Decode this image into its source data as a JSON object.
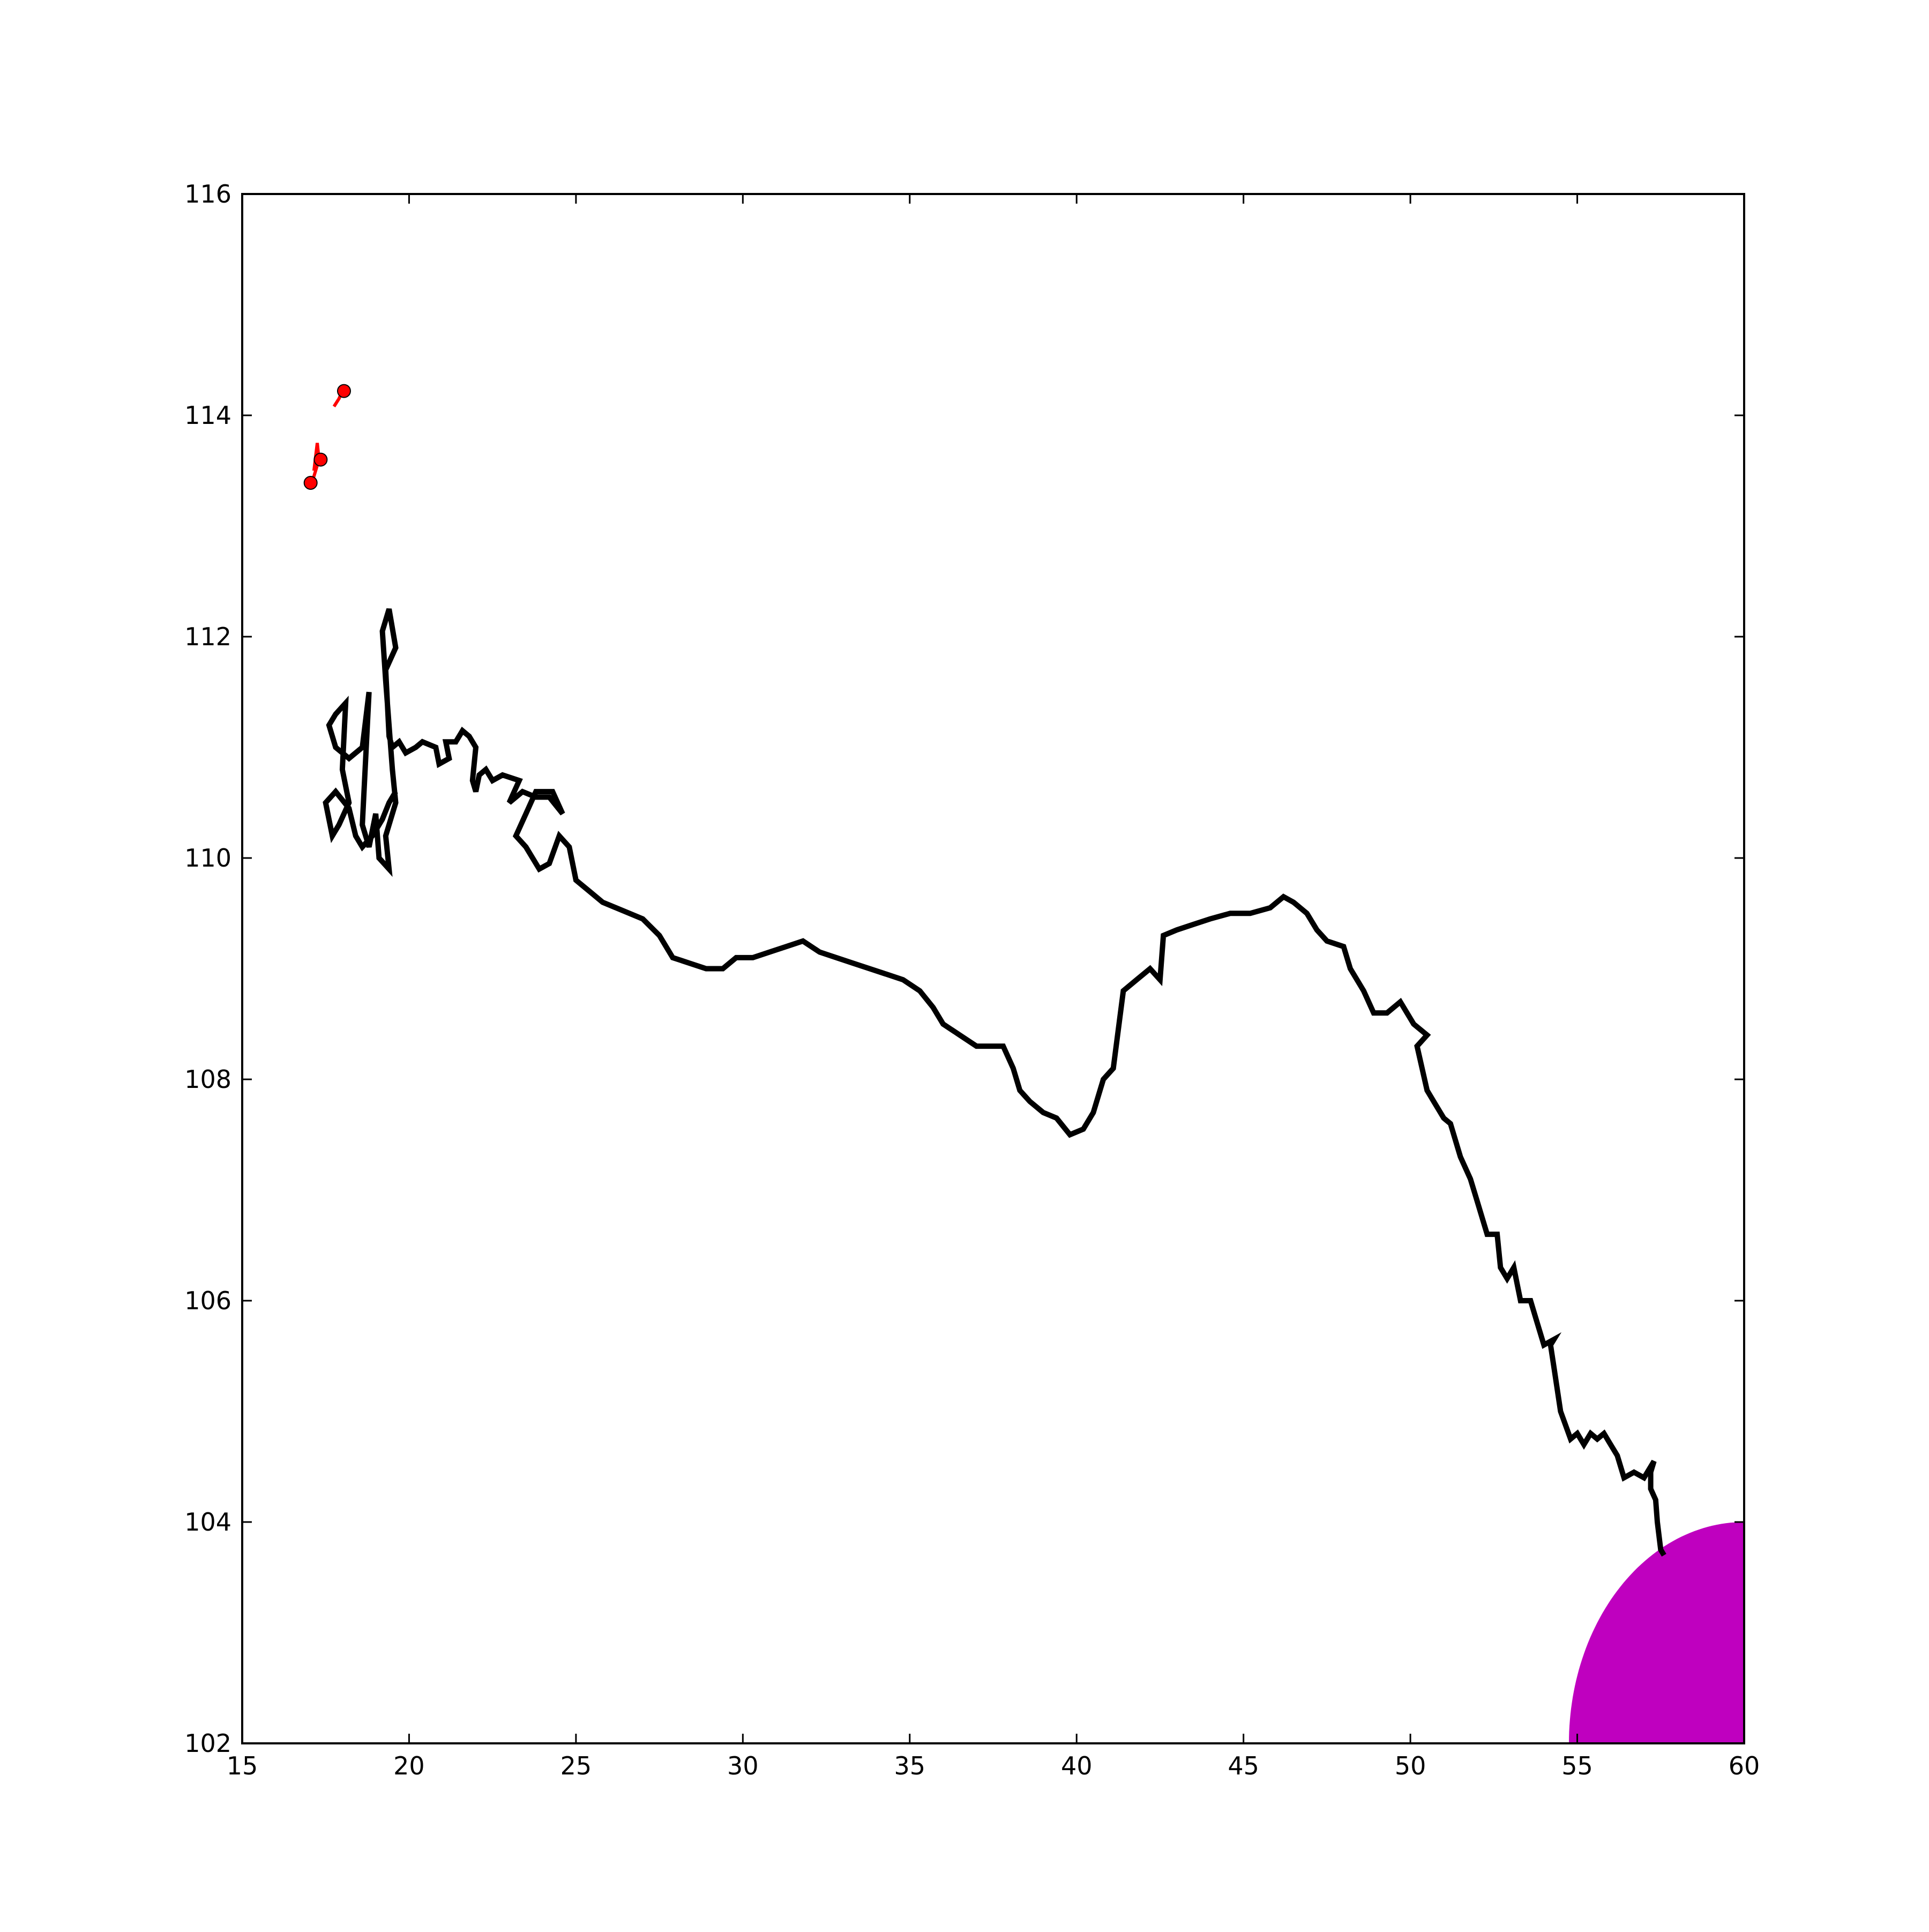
{
  "chart_data": {
    "type": "line",
    "title": "",
    "xlabel": "",
    "ylabel": "",
    "xlim": [
      15,
      60
    ],
    "ylim": [
      102,
      116
    ],
    "grid": false,
    "legend": "none",
    "x_ticks": [
      15,
      20,
      25,
      30,
      35,
      40,
      45,
      50,
      55,
      60
    ],
    "y_ticks": [
      102,
      104,
      106,
      108,
      110,
      112,
      114,
      116
    ],
    "x_tick_labels": [
      "15",
      "20",
      "25",
      "30",
      "35",
      "40",
      "45",
      "50",
      "55",
      "60"
    ],
    "y_tick_labels": [
      "102",
      "104",
      "106",
      "108",
      "110",
      "112",
      "114",
      "116"
    ],
    "series": [
      {
        "color": "#000000",
        "points": [
          [
            57.6,
            103.7
          ],
          [
            57.5,
            103.75
          ],
          [
            57.4,
            104.0
          ],
          [
            57.35,
            104.2
          ],
          [
            57.2,
            104.3
          ],
          [
            57.2,
            104.45
          ],
          [
            57.3,
            104.55
          ],
          [
            57.0,
            104.4
          ],
          [
            56.7,
            104.45
          ],
          [
            56.4,
            104.4
          ],
          [
            56.2,
            104.6
          ],
          [
            56.0,
            104.7
          ],
          [
            55.8,
            104.8
          ],
          [
            55.6,
            104.75
          ],
          [
            55.4,
            104.8
          ],
          [
            55.2,
            104.7
          ],
          [
            55.0,
            104.8
          ],
          [
            54.8,
            104.75
          ],
          [
            54.5,
            105.0
          ],
          [
            54.3,
            105.4
          ],
          [
            54.2,
            105.6
          ],
          [
            54.3,
            105.65
          ],
          [
            54.0,
            105.6
          ],
          [
            53.8,
            105.8
          ],
          [
            53.6,
            106.0
          ],
          [
            53.3,
            106.0
          ],
          [
            53.1,
            106.3
          ],
          [
            52.9,
            106.2
          ],
          [
            52.7,
            106.3
          ],
          [
            52.6,
            106.6
          ],
          [
            52.3,
            106.6
          ],
          [
            52.0,
            106.9
          ],
          [
            51.8,
            107.1
          ],
          [
            51.5,
            107.3
          ],
          [
            51.2,
            107.6
          ],
          [
            51.0,
            107.65
          ],
          [
            50.7,
            107.8
          ],
          [
            50.5,
            107.9
          ],
          [
            50.2,
            108.3
          ],
          [
            50.5,
            108.4
          ],
          [
            50.1,
            108.5
          ],
          [
            49.7,
            108.7
          ],
          [
            49.3,
            108.6
          ],
          [
            48.9,
            108.6
          ],
          [
            48.6,
            108.8
          ],
          [
            48.2,
            109.0
          ],
          [
            48.0,
            109.2
          ],
          [
            47.5,
            109.25
          ],
          [
            47.2,
            109.35
          ],
          [
            46.9,
            109.5
          ],
          [
            46.5,
            109.6
          ],
          [
            46.2,
            109.65
          ],
          [
            45.8,
            109.55
          ],
          [
            45.2,
            109.5
          ],
          [
            44.6,
            109.5
          ],
          [
            44.0,
            109.45
          ],
          [
            43.5,
            109.4
          ],
          [
            43.0,
            109.35
          ],
          [
            42.6,
            109.3
          ],
          [
            42.5,
            108.9
          ],
          [
            42.2,
            109.0
          ],
          [
            41.8,
            108.9
          ],
          [
            41.4,
            108.8
          ],
          [
            41.1,
            108.1
          ],
          [
            40.8,
            108.0
          ],
          [
            40.5,
            107.7
          ],
          [
            40.2,
            107.55
          ],
          [
            39.8,
            107.5
          ],
          [
            39.4,
            107.65
          ],
          [
            39.0,
            107.7
          ],
          [
            38.6,
            107.8
          ],
          [
            38.3,
            107.9
          ],
          [
            38.1,
            108.1
          ],
          [
            37.8,
            108.3
          ],
          [
            37.5,
            108.3
          ],
          [
            37.0,
            108.3
          ],
          [
            36.5,
            108.4
          ],
          [
            36.0,
            108.5
          ],
          [
            35.7,
            108.65
          ],
          [
            35.3,
            108.8
          ],
          [
            34.8,
            108.9
          ],
          [
            34.3,
            108.95
          ],
          [
            33.8,
            109.0
          ],
          [
            33.3,
            109.05
          ],
          [
            32.8,
            109.1
          ],
          [
            32.3,
            109.15
          ],
          [
            31.8,
            109.25
          ],
          [
            31.3,
            109.2
          ],
          [
            30.8,
            109.15
          ],
          [
            30.3,
            109.1
          ],
          [
            29.8,
            109.1
          ],
          [
            29.4,
            109.0
          ],
          [
            28.9,
            109.0
          ],
          [
            28.4,
            109.05
          ],
          [
            27.9,
            109.1
          ],
          [
            27.5,
            109.3
          ],
          [
            27.0,
            109.45
          ],
          [
            26.6,
            109.5
          ],
          [
            26.2,
            109.55
          ],
          [
            25.8,
            109.6
          ],
          [
            25.4,
            109.7
          ],
          [
            25.0,
            109.8
          ],
          [
            24.8,
            110.1
          ],
          [
            24.5,
            110.2
          ],
          [
            24.2,
            109.95
          ],
          [
            23.9,
            109.9
          ],
          [
            23.5,
            110.1
          ],
          [
            23.2,
            110.2
          ],
          [
            23.5,
            110.4
          ],
          [
            23.8,
            110.6
          ],
          [
            24.3,
            110.6
          ],
          [
            24.6,
            110.4
          ],
          [
            24.2,
            110.55
          ],
          [
            23.8,
            110.55
          ],
          [
            23.4,
            110.6
          ],
          [
            23.0,
            110.5
          ],
          [
            23.3,
            110.7
          ],
          [
            22.8,
            110.75
          ],
          [
            22.5,
            110.7
          ],
          [
            22.3,
            110.8
          ],
          [
            22.1,
            110.75
          ],
          [
            22.0,
            110.6
          ],
          [
            21.9,
            110.7
          ],
          [
            22.0,
            111.0
          ],
          [
            21.8,
            111.1
          ],
          [
            21.6,
            111.15
          ],
          [
            21.4,
            111.05
          ],
          [
            21.1,
            111.05
          ],
          [
            21.2,
            110.9
          ],
          [
            20.9,
            110.85
          ],
          [
            20.8,
            111.0
          ],
          [
            20.4,
            111.05
          ],
          [
            20.2,
            111.0
          ],
          [
            19.9,
            110.95
          ],
          [
            19.7,
            111.05
          ],
          [
            19.5,
            111.0
          ],
          [
            19.4,
            111.1
          ],
          [
            19.3,
            111.7
          ],
          [
            19.6,
            111.9
          ],
          [
            19.4,
            112.25
          ],
          [
            19.2,
            112.05
          ],
          [
            19.3,
            111.6
          ],
          [
            19.5,
            110.8
          ],
          [
            19.6,
            110.5
          ],
          [
            19.3,
            110.2
          ],
          [
            19.4,
            109.9
          ],
          [
            19.1,
            110.0
          ],
          [
            19.0,
            110.4
          ],
          [
            18.8,
            110.1
          ],
          [
            18.6,
            110.3
          ],
          [
            18.8,
            111.5
          ],
          [
            18.6,
            111.0
          ],
          [
            18.2,
            110.9
          ],
          [
            17.8,
            111.0
          ],
          [
            17.6,
            111.2
          ],
          [
            17.8,
            111.3
          ],
          [
            18.1,
            111.4
          ],
          [
            18.0,
            110.8
          ],
          [
            18.2,
            110.5
          ],
          [
            17.9,
            110.3
          ],
          [
            17.7,
            110.2
          ],
          [
            17.5,
            110.5
          ],
          [
            17.8,
            110.6
          ],
          [
            18.2,
            110.45
          ],
          [
            18.4,
            110.2
          ],
          [
            18.6,
            110.1
          ],
          [
            18.9,
            110.2
          ],
          [
            19.2,
            110.35
          ],
          [
            19.4,
            110.5
          ],
          [
            19.6,
            110.6
          ]
        ]
      },
      {
        "color": "#ff0000",
        "points": [
          [
            17.1,
            113.4
          ],
          [
            17.3,
            113.6
          ],
          [
            17.25,
            113.75
          ],
          [
            17.15,
            113.5
          ]
        ]
      },
      {
        "color": "#ff0000",
        "points": [
          [
            18.0,
            114.22
          ],
          [
            17.9,
            114.15
          ],
          [
            17.75,
            114.08
          ]
        ]
      }
    ],
    "markers": [
      {
        "x": 17.05,
        "y": 113.39,
        "color": "#ff0000"
      },
      {
        "x": 17.35,
        "y": 113.6,
        "color": "#ff0000"
      },
      {
        "x": 18.05,
        "y": 114.22,
        "color": "#ff0000"
      }
    ],
    "filled_region": {
      "color": "#bf00bf",
      "peak": [
        60,
        104.0
      ],
      "base_left_x": 54.75,
      "base_y": 102
    }
  }
}
